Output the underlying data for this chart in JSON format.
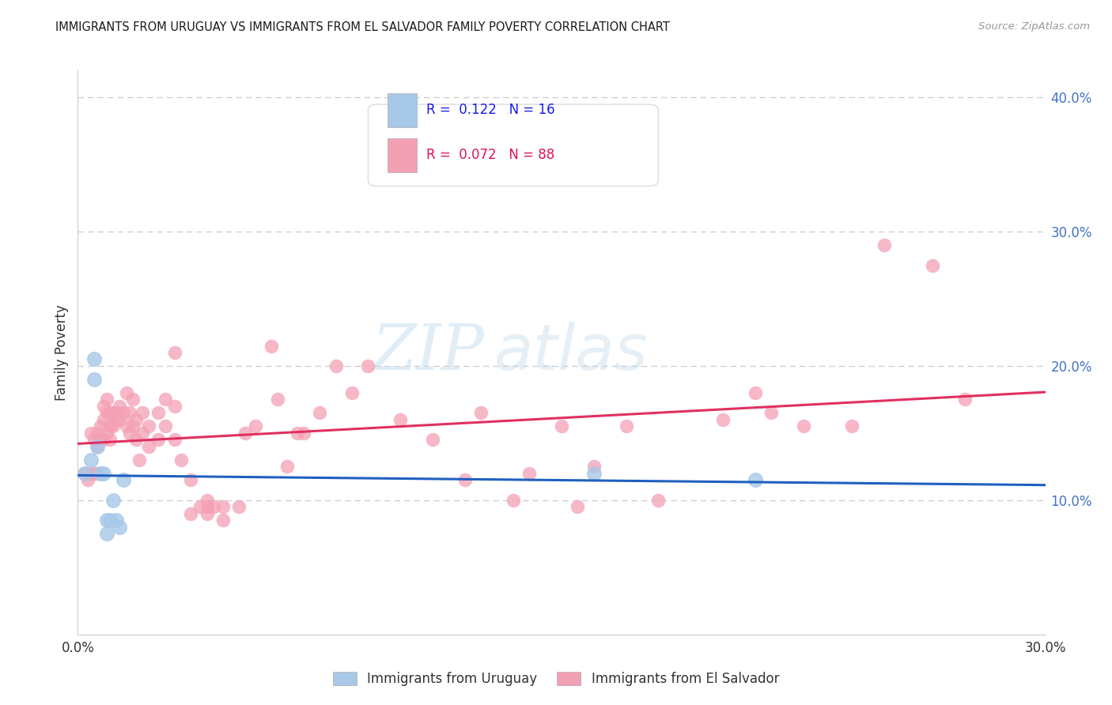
{
  "title": "IMMIGRANTS FROM URUGUAY VS IMMIGRANTS FROM EL SALVADOR FAMILY POVERTY CORRELATION CHART",
  "source": "Source: ZipAtlas.com",
  "ylabel": "Family Poverty",
  "legend_label1": "Immigrants from Uruguay",
  "legend_label2": "Immigrants from El Salvador",
  "r1": 0.122,
  "n1": 16,
  "r2": 0.072,
  "n2": 88,
  "xlim": [
    0.0,
    0.3
  ],
  "ylim": [
    0.0,
    0.42
  ],
  "color_uruguay": "#a8c8e8",
  "color_el_salvador": "#f4a0b4",
  "line_color_uruguay": "#2060c0",
  "line_color_el_salvador": "#e03060",
  "watermark_zip": "ZIP",
  "watermark_atlas": "atlas",
  "uruguay_x": [
    0.002,
    0.004,
    0.005,
    0.005,
    0.006,
    0.007,
    0.008,
    0.009,
    0.009,
    0.01,
    0.011,
    0.012,
    0.013,
    0.014,
    0.16,
    0.21
  ],
  "uruguay_y": [
    0.12,
    0.13,
    0.205,
    0.19,
    0.14,
    0.12,
    0.12,
    0.085,
    0.075,
    0.085,
    0.1,
    0.085,
    0.08,
    0.115,
    0.12,
    0.115
  ],
  "el_salvador_x": [
    0.002,
    0.003,
    0.004,
    0.004,
    0.005,
    0.005,
    0.006,
    0.006,
    0.006,
    0.007,
    0.007,
    0.008,
    0.008,
    0.008,
    0.009,
    0.009,
    0.009,
    0.01,
    0.01,
    0.01,
    0.011,
    0.011,
    0.012,
    0.012,
    0.013,
    0.013,
    0.014,
    0.015,
    0.015,
    0.016,
    0.016,
    0.017,
    0.017,
    0.018,
    0.018,
    0.019,
    0.02,
    0.02,
    0.022,
    0.022,
    0.025,
    0.025,
    0.027,
    0.027,
    0.03,
    0.03,
    0.03,
    0.032,
    0.035,
    0.035,
    0.038,
    0.04,
    0.04,
    0.04,
    0.042,
    0.045,
    0.045,
    0.05,
    0.052,
    0.055,
    0.06,
    0.062,
    0.065,
    0.068,
    0.07,
    0.075,
    0.08,
    0.085,
    0.09,
    0.1,
    0.11,
    0.12,
    0.125,
    0.135,
    0.14,
    0.15,
    0.155,
    0.16,
    0.17,
    0.18,
    0.2,
    0.21,
    0.215,
    0.225,
    0.24,
    0.25,
    0.265,
    0.275
  ],
  "el_salvador_y": [
    0.12,
    0.115,
    0.15,
    0.12,
    0.145,
    0.12,
    0.15,
    0.14,
    0.12,
    0.155,
    0.145,
    0.17,
    0.16,
    0.145,
    0.175,
    0.165,
    0.15,
    0.165,
    0.155,
    0.145,
    0.165,
    0.155,
    0.165,
    0.16,
    0.17,
    0.16,
    0.165,
    0.18,
    0.155,
    0.165,
    0.15,
    0.175,
    0.155,
    0.16,
    0.145,
    0.13,
    0.165,
    0.15,
    0.155,
    0.14,
    0.165,
    0.145,
    0.175,
    0.155,
    0.21,
    0.17,
    0.145,
    0.13,
    0.115,
    0.09,
    0.095,
    0.1,
    0.095,
    0.09,
    0.095,
    0.095,
    0.085,
    0.095,
    0.15,
    0.155,
    0.215,
    0.175,
    0.125,
    0.15,
    0.15,
    0.165,
    0.2,
    0.18,
    0.2,
    0.16,
    0.145,
    0.115,
    0.165,
    0.1,
    0.12,
    0.155,
    0.095,
    0.125,
    0.155,
    0.1,
    0.16,
    0.18,
    0.165,
    0.155,
    0.155,
    0.29,
    0.275,
    0.175
  ]
}
